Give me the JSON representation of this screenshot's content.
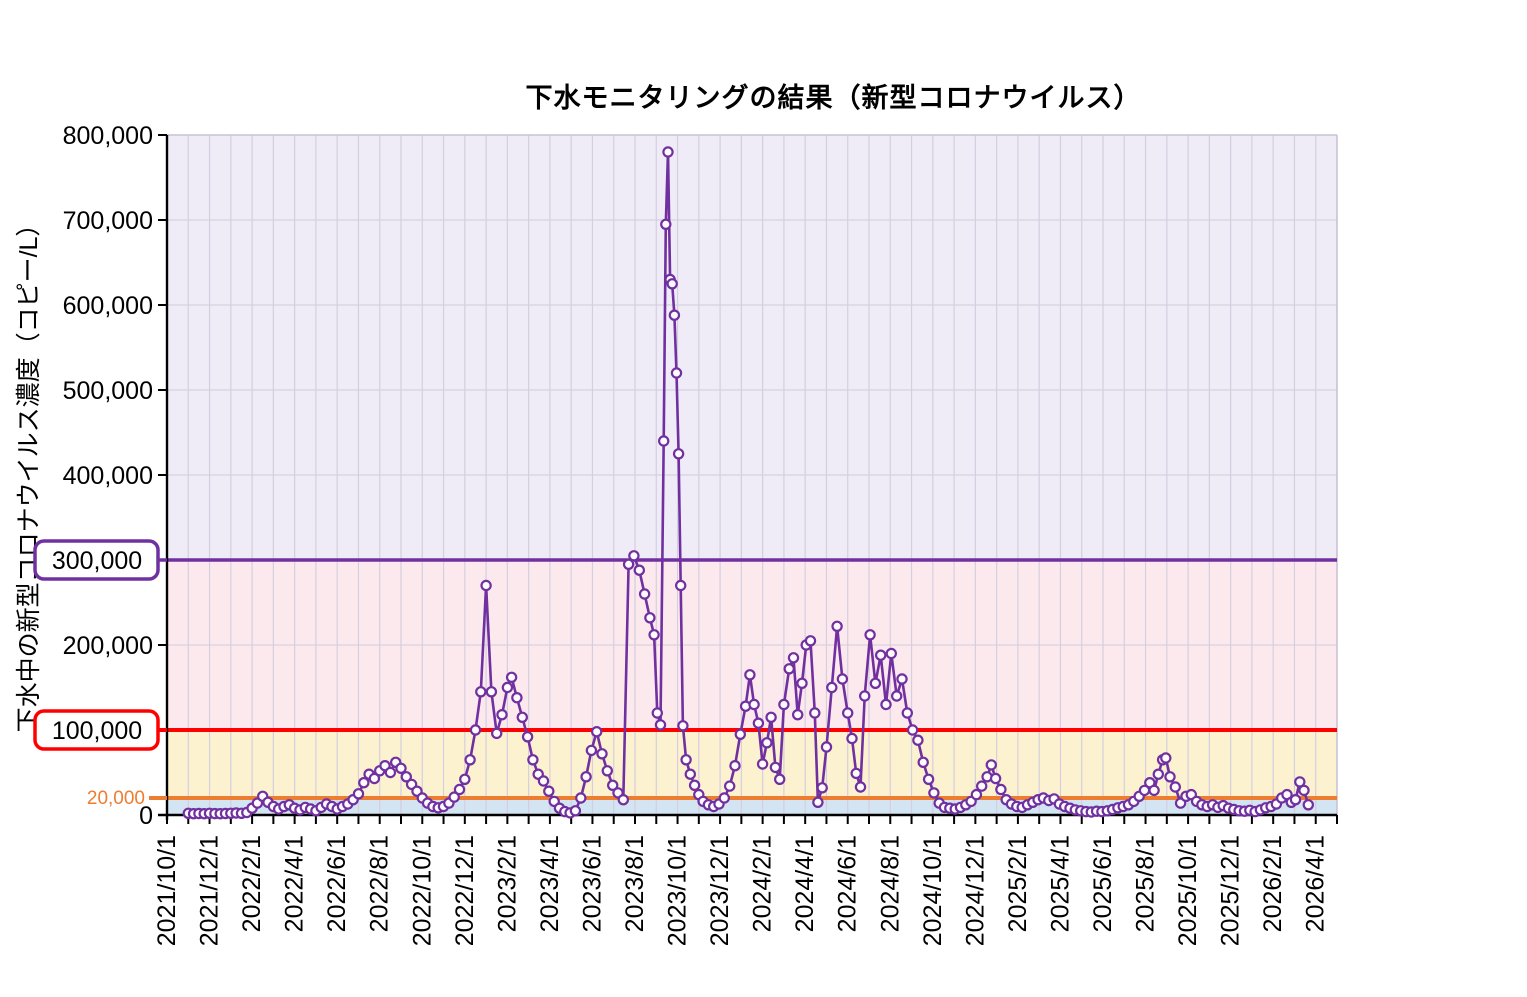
{
  "page": {
    "background": "#FFFFFF"
  },
  "chart_data": {
    "type": "line",
    "title": "下水モニタリングの結果（新型コロナウイルス）",
    "xlabel": "",
    "ylabel": "下水中の新型コロナウイルス濃度（コピー/L）",
    "legend": "none",
    "x_domain_months": [
      0,
      55
    ],
    "x_start_label": "2021/10/1",
    "x_tick_interval_months": 2,
    "x_minor_tick_interval_months": 1,
    "x_tick_labels": [
      "2021/10/1",
      "2021/12/1",
      "2022/2/1",
      "2022/4/1",
      "2022/6/1",
      "2022/8/1",
      "2022/10/1",
      "2022/12/1",
      "2023/2/1",
      "2023/4/1",
      "2023/6/1",
      "2023/8/1",
      "2023/10/1",
      "2023/12/1",
      "2024/2/1",
      "2024/4/1",
      "2024/6/1",
      "2024/8/1",
      "2024/10/1",
      "2024/12/1",
      "2025/2/1",
      "2025/4/1",
      "2025/6/1",
      "2025/8/1",
      "2025/10/1",
      "2025/12/1",
      "2026/2/1",
      "2026/4/1"
    ],
    "ylim": [
      0,
      800000
    ],
    "y_tick_interval": 100000,
    "y_tick_labels": [
      "0",
      "100,000",
      "200,000",
      "300,000",
      "400,000",
      "500,000",
      "600,000",
      "700,000",
      "800,000"
    ],
    "grid": {
      "vertical": true,
      "horizontal": true
    },
    "bands": [
      {
        "from": 0,
        "to": 20000,
        "color": "#D3E4F2"
      },
      {
        "from": 20000,
        "to": 100000,
        "color": "#FDF2D0"
      },
      {
        "from": 100000,
        "to": 300000,
        "color": "#FCE9EE"
      },
      {
        "from": 300000,
        "to": 800000,
        "color": "#EFEBF7"
      }
    ],
    "thresholds": [
      {
        "value": 20000,
        "label": "20,000",
        "color": "#ED7D31",
        "style": "plain-text",
        "width": 4
      },
      {
        "value": 100000,
        "label": "100,000",
        "color": "#FF0000",
        "style": "boxed-label",
        "width": 4
      },
      {
        "value": 300000,
        "label": "300,000",
        "color": "#7030A0",
        "style": "boxed-label",
        "width": 3.5
      }
    ],
    "series": [
      {
        "name": "下水中の新型コロナウイルス濃度（コピー/L）",
        "color": "#7030A0",
        "marker": "open-circle",
        "marker_fill": "#FDFBFE",
        "points": [
          [
            1.0,
            2000
          ],
          [
            1.25,
            1500
          ],
          [
            1.5,
            1800
          ],
          [
            1.75,
            1500
          ],
          [
            2.0,
            2000
          ],
          [
            2.25,
            1600
          ],
          [
            2.5,
            1500
          ],
          [
            2.75,
            1800
          ],
          [
            3.0,
            2000
          ],
          [
            3.25,
            2400
          ],
          [
            3.5,
            2000
          ],
          [
            3.75,
            3000
          ],
          [
            4.0,
            8000
          ],
          [
            4.25,
            14000
          ],
          [
            4.5,
            22000
          ],
          [
            4.75,
            15000
          ],
          [
            5.0,
            10000
          ],
          [
            5.25,
            7000
          ],
          [
            5.5,
            10000
          ],
          [
            5.75,
            12000
          ],
          [
            6.0,
            8000
          ],
          [
            6.25,
            6000
          ],
          [
            6.5,
            9000
          ],
          [
            6.75,
            7000
          ],
          [
            7.0,
            5000
          ],
          [
            7.25,
            9000
          ],
          [
            7.5,
            13000
          ],
          [
            7.75,
            10000
          ],
          [
            8.0,
            7000
          ],
          [
            8.25,
            10000
          ],
          [
            8.5,
            13000
          ],
          [
            8.75,
            18000
          ],
          [
            9.0,
            25000
          ],
          [
            9.25,
            38000
          ],
          [
            9.5,
            48000
          ],
          [
            9.75,
            43000
          ],
          [
            10.0,
            52000
          ],
          [
            10.25,
            58000
          ],
          [
            10.5,
            50000
          ],
          [
            10.75,
            62000
          ],
          [
            11.0,
            55000
          ],
          [
            11.25,
            45000
          ],
          [
            11.5,
            36000
          ],
          [
            11.75,
            28000
          ],
          [
            12.0,
            20000
          ],
          [
            12.25,
            14000
          ],
          [
            12.5,
            10000
          ],
          [
            12.75,
            8500
          ],
          [
            13.0,
            10000
          ],
          [
            13.25,
            14000
          ],
          [
            13.5,
            21000
          ],
          [
            13.75,
            30000
          ],
          [
            14.0,
            42000
          ],
          [
            14.25,
            65000
          ],
          [
            14.5,
            100000
          ],
          [
            14.75,
            145000
          ],
          [
            15.0,
            270000
          ],
          [
            15.25,
            145000
          ],
          [
            15.5,
            96000
          ],
          [
            15.75,
            118000
          ],
          [
            16.0,
            150000
          ],
          [
            16.2,
            162000
          ],
          [
            16.45,
            138000
          ],
          [
            16.7,
            115000
          ],
          [
            16.95,
            92000
          ],
          [
            17.2,
            65000
          ],
          [
            17.45,
            48000
          ],
          [
            17.7,
            40000
          ],
          [
            17.95,
            28000
          ],
          [
            18.2,
            16000
          ],
          [
            18.45,
            8000
          ],
          [
            18.7,
            4000
          ],
          [
            18.95,
            2500
          ],
          [
            19.2,
            5000
          ],
          [
            19.45,
            20000
          ],
          [
            19.7,
            45000
          ],
          [
            19.95,
            76000
          ],
          [
            20.2,
            98000
          ],
          [
            20.45,
            72000
          ],
          [
            20.7,
            52000
          ],
          [
            20.95,
            35000
          ],
          [
            21.2,
            26000
          ],
          [
            21.45,
            18000
          ],
          [
            21.7,
            295000
          ],
          [
            21.95,
            305000
          ],
          [
            22.2,
            288000
          ],
          [
            22.45,
            260000
          ],
          [
            22.7,
            232000
          ],
          [
            22.9,
            212000
          ],
          [
            23.05,
            120000
          ],
          [
            23.2,
            106000
          ],
          [
            23.35,
            440000
          ],
          [
            23.45,
            695000
          ],
          [
            23.55,
            780000
          ],
          [
            23.65,
            630000
          ],
          [
            23.75,
            625000
          ],
          [
            23.85,
            588000
          ],
          [
            23.95,
            520000
          ],
          [
            24.05,
            425000
          ],
          [
            24.15,
            270000
          ],
          [
            24.25,
            105000
          ],
          [
            24.4,
            65000
          ],
          [
            24.6,
            48000
          ],
          [
            24.8,
            35000
          ],
          [
            25.0,
            24000
          ],
          [
            25.2,
            16000
          ],
          [
            25.45,
            12000
          ],
          [
            25.7,
            10000
          ],
          [
            25.95,
            13000
          ],
          [
            26.2,
            20000
          ],
          [
            26.45,
            34000
          ],
          [
            26.7,
            58000
          ],
          [
            26.95,
            95000
          ],
          [
            27.2,
            128000
          ],
          [
            27.4,
            165000
          ],
          [
            27.6,
            130000
          ],
          [
            27.8,
            108000
          ],
          [
            28.0,
            60000
          ],
          [
            28.2,
            85000
          ],
          [
            28.4,
            115000
          ],
          [
            28.6,
            56000
          ],
          [
            28.8,
            42000
          ],
          [
            29.0,
            130000
          ],
          [
            29.25,
            172000
          ],
          [
            29.45,
            185000
          ],
          [
            29.65,
            118000
          ],
          [
            29.85,
            155000
          ],
          [
            30.05,
            200000
          ],
          [
            30.25,
            205000
          ],
          [
            30.45,
            120000
          ],
          [
            30.6,
            15000
          ],
          [
            30.8,
            32000
          ],
          [
            31.0,
            80000
          ],
          [
            31.25,
            150000
          ],
          [
            31.5,
            222000
          ],
          [
            31.75,
            160000
          ],
          [
            32.0,
            120000
          ],
          [
            32.2,
            90000
          ],
          [
            32.4,
            49000
          ],
          [
            32.6,
            33000
          ],
          [
            32.8,
            140000
          ],
          [
            33.05,
            212000
          ],
          [
            33.3,
            155000
          ],
          [
            33.55,
            188000
          ],
          [
            33.8,
            130000
          ],
          [
            34.05,
            190000
          ],
          [
            34.3,
            140000
          ],
          [
            34.55,
            160000
          ],
          [
            34.8,
            120000
          ],
          [
            35.05,
            100000
          ],
          [
            35.3,
            88000
          ],
          [
            35.55,
            62000
          ],
          [
            35.8,
            42000
          ],
          [
            36.05,
            26000
          ],
          [
            36.3,
            14000
          ],
          [
            36.55,
            9000
          ],
          [
            36.8,
            8000
          ],
          [
            37.05,
            7000
          ],
          [
            37.3,
            9000
          ],
          [
            37.55,
            12000
          ],
          [
            37.8,
            16000
          ],
          [
            38.05,
            24000
          ],
          [
            38.3,
            34000
          ],
          [
            38.55,
            45000
          ],
          [
            38.75,
            59000
          ],
          [
            38.95,
            43000
          ],
          [
            39.2,
            30000
          ],
          [
            39.45,
            18000
          ],
          [
            39.7,
            13000
          ],
          [
            39.95,
            10000
          ],
          [
            40.2,
            9000
          ],
          [
            40.45,
            12000
          ],
          [
            40.7,
            15000
          ],
          [
            40.95,
            18000
          ],
          [
            41.2,
            20000
          ],
          [
            41.45,
            17000
          ],
          [
            41.7,
            19000
          ],
          [
            41.95,
            13000
          ],
          [
            42.2,
            10000
          ],
          [
            42.45,
            8000
          ],
          [
            42.7,
            6000
          ],
          [
            42.95,
            5000
          ],
          [
            43.2,
            4000
          ],
          [
            43.45,
            3500
          ],
          [
            43.7,
            4500
          ],
          [
            43.95,
            4000
          ],
          [
            44.2,
            5000
          ],
          [
            44.45,
            6500
          ],
          [
            44.7,
            8500
          ],
          [
            44.95,
            10000
          ],
          [
            45.2,
            12000
          ],
          [
            45.45,
            16000
          ],
          [
            45.7,
            22000
          ],
          [
            45.95,
            29000
          ],
          [
            46.2,
            38000
          ],
          [
            46.4,
            29000
          ],
          [
            46.6,
            48000
          ],
          [
            46.8,
            65000
          ],
          [
            46.95,
            67000
          ],
          [
            47.15,
            45000
          ],
          [
            47.4,
            33000
          ],
          [
            47.65,
            14000
          ],
          [
            47.9,
            22000
          ],
          [
            48.15,
            24000
          ],
          [
            48.4,
            16000
          ],
          [
            48.65,
            12000
          ],
          [
            48.9,
            10000
          ],
          [
            49.15,
            12000
          ],
          [
            49.4,
            9000
          ],
          [
            49.65,
            11000
          ],
          [
            49.9,
            8000
          ],
          [
            50.15,
            6500
          ],
          [
            50.4,
            5000
          ],
          [
            50.65,
            4500
          ],
          [
            50.9,
            5500
          ],
          [
            51.15,
            4000
          ],
          [
            51.4,
            6000
          ],
          [
            51.65,
            8500
          ],
          [
            51.9,
            10000
          ],
          [
            52.15,
            13000
          ],
          [
            52.4,
            20000
          ],
          [
            52.65,
            24000
          ],
          [
            52.85,
            15000
          ],
          [
            53.05,
            18000
          ],
          [
            53.25,
            39000
          ],
          [
            53.45,
            29000
          ],
          [
            53.65,
            12000
          ]
        ]
      }
    ]
  }
}
